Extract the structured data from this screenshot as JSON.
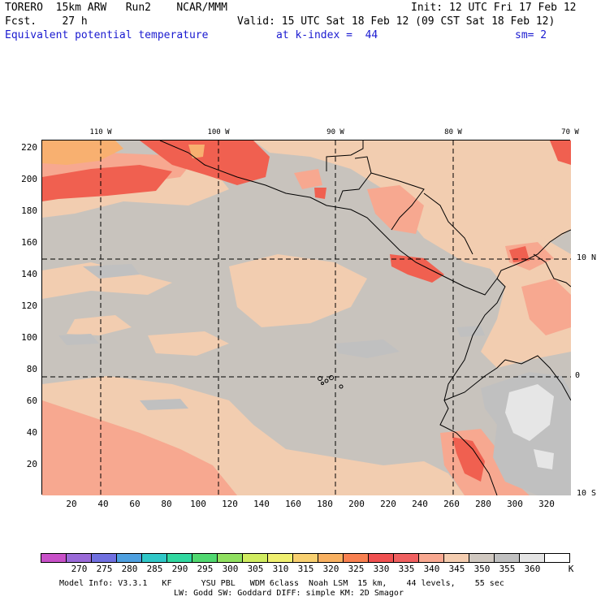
{
  "header": {
    "line1_left": "TORERO  15km ARW   Run2    NCAR/MMM",
    "line1_right": "Init: 12 UTC Fri 17 Feb 12",
    "line2_left": "Fcst.    27 h",
    "line2_right": "Valid: 15 UTC Sat 18 Feb 12 (09 CST Sat 18 Feb 12)",
    "field": "Equivalent potential temperature",
    "level": "at k-index =  44",
    "smooth": "sm= 2"
  },
  "map": {
    "top_lon_labels": [
      "110 W",
      "100 W",
      "90 W",
      "80 W",
      "70 W"
    ],
    "right_lat_labels": [
      "10 N",
      "0",
      "10 S"
    ],
    "y_ticks": [
      "220",
      "200",
      "180",
      "160",
      "140",
      "120",
      "100",
      "80",
      "60",
      "40",
      "20"
    ],
    "x_ticks": [
      "20",
      "40",
      "60",
      "80",
      "100",
      "120",
      "140",
      "160",
      "180",
      "200",
      "220",
      "240",
      "260",
      "280",
      "300",
      "320"
    ]
  },
  "colorbar": {
    "labels": [
      "270",
      "275",
      "280",
      "285",
      "290",
      "295",
      "300",
      "305",
      "310",
      "315",
      "320",
      "325",
      "330",
      "335",
      "340",
      "345",
      "350",
      "355",
      "360"
    ],
    "unit": "K",
    "colors": [
      "#c850c8",
      "#9a6ad8",
      "#7070e0",
      "#4ea0e0",
      "#30c8c8",
      "#30d8a0",
      "#50d870",
      "#90e060",
      "#d0ec60",
      "#f0f070",
      "#f8d070",
      "#f8b060",
      "#f88050",
      "#f05050",
      "#f06060",
      "#f8a890",
      "#f4cdb0",
      "#d0c8c0",
      "#c0c0c0",
      "#e4e4e4",
      "#ffffff"
    ]
  },
  "footer": {
    "line1": "Model Info: V3.3.1   KF      YSU PBL   WDM 6class  Noah LSM  15 km,    44 levels,    55 sec",
    "line2": "LW: Godd SW: Goddard DIFF: simple KM: 2D Smagor"
  }
}
